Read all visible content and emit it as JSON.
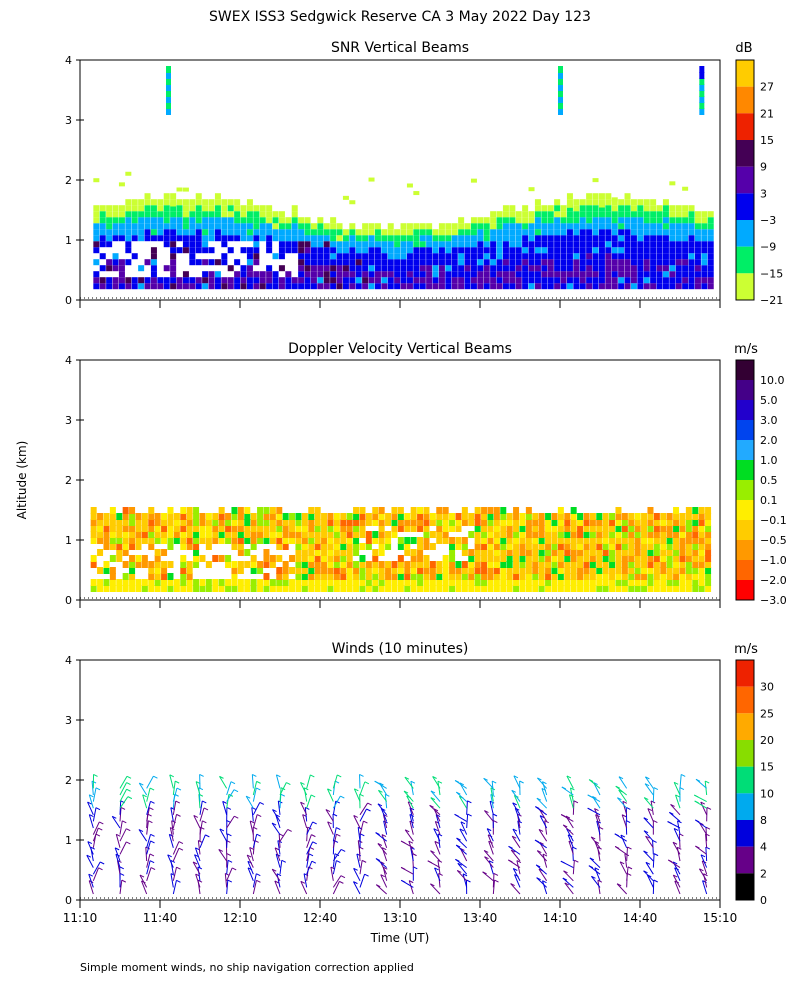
{
  "page": {
    "title": "SWEX ISS3 Sedgwick Reserve CA   3 May 2022 Day 123",
    "ylabel": "Altitude (km)",
    "xlabel": "Time (UT)",
    "footnote": "Simple moment winds, no ship navigation correction applied"
  },
  "chart_data": [
    {
      "type": "heatmap",
      "title": "SNR Vertical Beams",
      "units": "dB",
      "ylim": [
        0,
        4
      ],
      "yticks": [
        "0",
        "1",
        "2",
        "3",
        "4"
      ],
      "xlim": [
        "11:10",
        "15:10"
      ],
      "colorbar": {
        "labels": [
          "27",
          "21",
          "15",
          "9",
          "3",
          "−3",
          "−9",
          "−15",
          "−21"
        ],
        "colors": [
          "#ffcc00",
          "#ff8800",
          "#ee2200",
          "#440055",
          "#5500aa",
          "#0000ee",
          "#00aaff",
          "#00ee66",
          "#ccff33"
        ]
      },
      "dominant_band": {
        "alt_km": [
          0.2,
          1.6
        ],
        "values_db": "−6 to 9"
      },
      "clouds": [
        {
          "time": "11:43",
          "alt_km": [
            3.1,
            3.9
          ]
        },
        {
          "time": "14:10",
          "alt_km": [
            3.1,
            3.9
          ]
        },
        {
          "time": "15:03",
          "alt_km": [
            3.1,
            3.9
          ]
        }
      ]
    },
    {
      "type": "heatmap",
      "title": "Doppler Velocity Vertical Beams",
      "units": "m/s",
      "ylim": [
        0,
        4
      ],
      "yticks": [
        "0",
        "1",
        "2",
        "3",
        "4"
      ],
      "xlim": [
        "11:10",
        "15:10"
      ],
      "colorbar": {
        "labels": [
          "10.0",
          "5.0",
          "3.0",
          "2.0",
          "1.0",
          "0.5",
          "0.1",
          "−0.1",
          "−0.5",
          "−1.0",
          "−2.0",
          "−3.0"
        ],
        "colors": [
          "#330033",
          "#440088",
          "#2200cc",
          "#0044ee",
          "#22aaff",
          "#00dd22",
          "#99ee00",
          "#ffee00",
          "#ffcc00",
          "#ff9900",
          "#ff6600",
          "#ff0000"
        ]
      },
      "dominant_band": {
        "alt_km": [
          0.2,
          1.4
        ],
        "values_ms": "−1.0 to −0.1"
      }
    },
    {
      "type": "scatter",
      "title": "Winds (10 minutes)",
      "units": "m/s",
      "ylim": [
        0,
        4
      ],
      "yticks": [
        "0",
        "1",
        "2",
        "3",
        "4"
      ],
      "x": [
        "11:10",
        "11:40",
        "12:10",
        "12:40",
        "13:10",
        "13:40",
        "14:10",
        "14:40",
        "15:10"
      ],
      "colorbar": {
        "labels": [
          "30",
          "25",
          "20",
          "15",
          "10",
          "8",
          "4",
          "2",
          "0"
        ],
        "colors": [
          "#ee2200",
          "#ff6600",
          "#ffaa00",
          "#88dd00",
          "#00dd77",
          "#00aaee",
          "#0000dd",
          "#660088",
          "#000000"
        ]
      },
      "max_alt_km": 1.9
    }
  ]
}
